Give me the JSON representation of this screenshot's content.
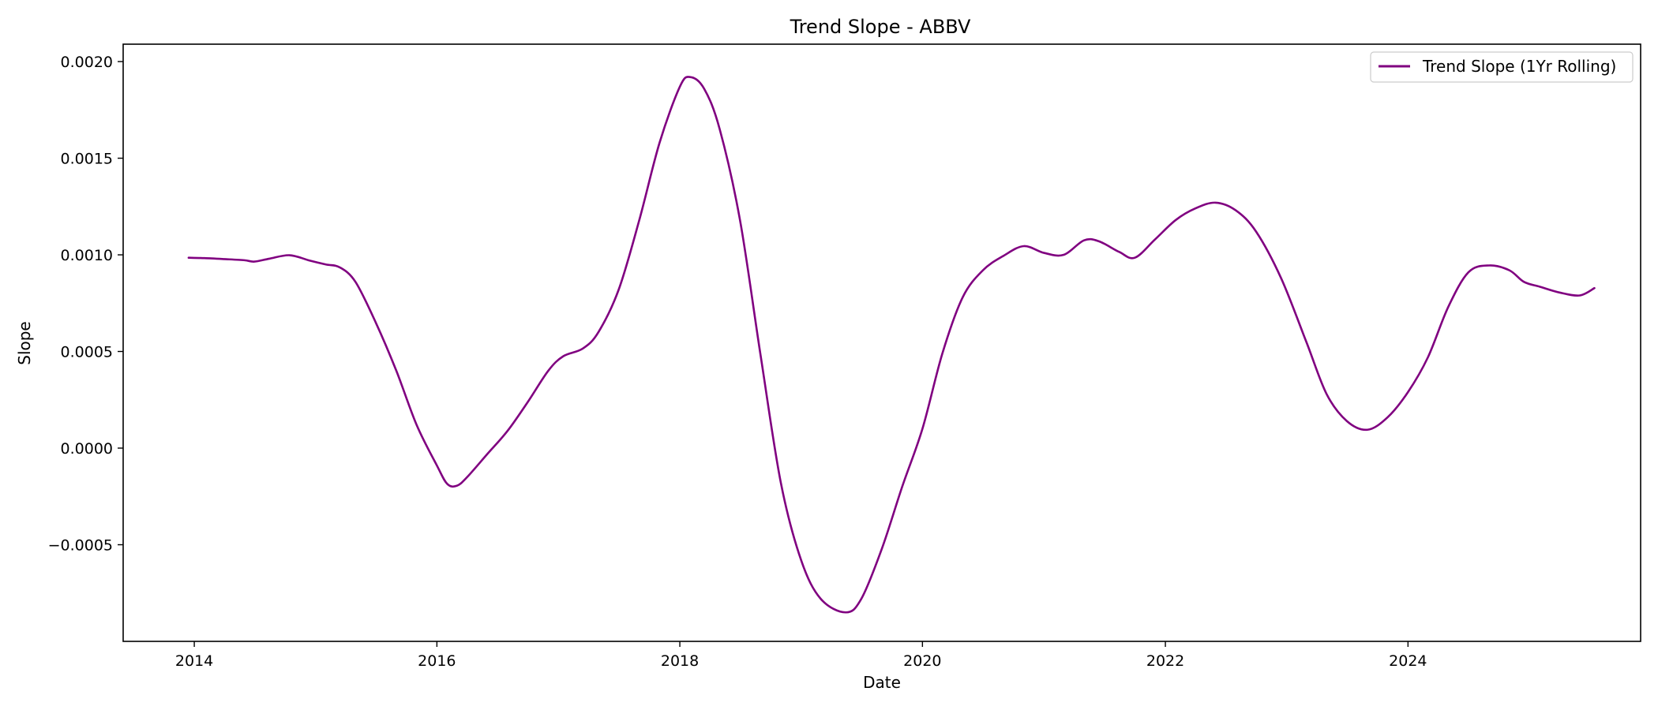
{
  "chart_data": {
    "type": "line",
    "title": "Trend Slope - ABBV",
    "xlabel": "Date",
    "ylabel": "Slope",
    "xlim": [
      "2013-06-01",
      "2025-12-01"
    ],
    "ylim": [
      -0.001,
      0.00209
    ],
    "grid": false,
    "legend_position": "top-right",
    "x_ticks": [
      {
        "date": "2014-01-01",
        "label": "2014"
      },
      {
        "date": "2016-01-01",
        "label": "2016"
      },
      {
        "date": "2018-01-01",
        "label": "2018"
      },
      {
        "date": "2020-01-01",
        "label": "2020"
      },
      {
        "date": "2022-01-01",
        "label": "2022"
      },
      {
        "date": "2024-01-01",
        "label": "2024"
      }
    ],
    "y_ticks": [
      {
        "value": -0.0005,
        "label": "−0.0005"
      },
      {
        "value": 0.0,
        "label": "0.0000"
      },
      {
        "value": 0.0005,
        "label": "0.0005"
      },
      {
        "value": 0.001,
        "label": "0.0010"
      },
      {
        "value": 0.0015,
        "label": "0.0015"
      },
      {
        "value": 0.002,
        "label": "0.0020"
      }
    ],
    "series": [
      {
        "name": "Trend Slope (1Yr Rolling)",
        "color": "#800080",
        "points": [
          [
            "2013-12-15",
            0.000985
          ],
          [
            "2014-02-01",
            0.000983
          ],
          [
            "2014-04-01",
            0.000978
          ],
          [
            "2014-06-01",
            0.000972
          ],
          [
            "2014-07-01",
            0.000965
          ],
          [
            "2014-08-15",
            0.00098
          ],
          [
            "2014-10-15",
            0.000998
          ],
          [
            "2014-12-15",
            0.00097
          ],
          [
            "2015-02-01",
            0.00095
          ],
          [
            "2015-03-15",
            0.000935
          ],
          [
            "2015-05-01",
            0.00086
          ],
          [
            "2015-07-01",
            0.00065
          ],
          [
            "2015-09-01",
            0.0004
          ],
          [
            "2015-11-01",
            0.00012
          ],
          [
            "2016-01-01",
            -9e-05
          ],
          [
            "2016-02-01",
            -0.000185
          ],
          [
            "2016-03-01",
            -0.000195
          ],
          [
            "2016-04-01",
            -0.00015
          ],
          [
            "2016-06-01",
            -3e-05
          ],
          [
            "2016-08-01",
            9e-05
          ],
          [
            "2016-10-01",
            0.00024
          ],
          [
            "2016-12-01",
            0.0004
          ],
          [
            "2017-01-15",
            0.000475
          ],
          [
            "2017-03-15",
            0.000515
          ],
          [
            "2017-05-01",
            0.0006
          ],
          [
            "2017-07-01",
            0.00082
          ],
          [
            "2017-09-01",
            0.00118
          ],
          [
            "2017-11-01",
            0.00158
          ],
          [
            "2018-01-01",
            0.00187
          ],
          [
            "2018-02-01",
            0.00192
          ],
          [
            "2018-03-15",
            0.00186
          ],
          [
            "2018-05-01",
            0.00165
          ],
          [
            "2018-07-01",
            0.00118
          ],
          [
            "2018-09-01",
            0.00048
          ],
          [
            "2018-11-01",
            -0.00018
          ],
          [
            "2019-01-01",
            -0.00058
          ],
          [
            "2019-03-01",
            -0.00078
          ],
          [
            "2019-05-15",
            -0.00085
          ],
          [
            "2019-07-01",
            -0.00078
          ],
          [
            "2019-09-01",
            -0.00052
          ],
          [
            "2019-11-01",
            -0.0002
          ],
          [
            "2020-01-01",
            0.0001
          ],
          [
            "2020-03-01",
            0.00049
          ],
          [
            "2020-05-01",
            0.00078
          ],
          [
            "2020-07-01",
            0.00092
          ],
          [
            "2020-09-01",
            0.000995
          ],
          [
            "2020-11-01",
            0.001045
          ],
          [
            "2021-01-01",
            0.00101
          ],
          [
            "2021-03-01",
            0.001
          ],
          [
            "2021-05-01",
            0.001075
          ],
          [
            "2021-06-15",
            0.00107
          ],
          [
            "2021-08-15",
            0.001015
          ],
          [
            "2021-10-01",
            0.000985
          ],
          [
            "2021-12-01",
            0.00108
          ],
          [
            "2022-02-01",
            0.00118
          ],
          [
            "2022-04-01",
            0.00124
          ],
          [
            "2022-06-01",
            0.00127
          ],
          [
            "2022-08-01",
            0.00123
          ],
          [
            "2022-10-01",
            0.00112
          ],
          [
            "2022-12-15",
            0.00088
          ],
          [
            "2023-03-01",
            0.00055
          ],
          [
            "2023-05-01",
            0.00028
          ],
          [
            "2023-07-01",
            0.00014
          ],
          [
            "2023-09-01",
            9.5e-05
          ],
          [
            "2023-11-01",
            0.00016
          ],
          [
            "2024-01-01",
            0.00029
          ],
          [
            "2024-03-01",
            0.00047
          ],
          [
            "2024-05-01",
            0.00073
          ],
          [
            "2024-07-01",
            0.00091
          ],
          [
            "2024-09-01",
            0.000945
          ],
          [
            "2024-11-01",
            0.00092
          ],
          [
            "2024-12-15",
            0.00086
          ],
          [
            "2025-02-01",
            0.000835
          ],
          [
            "2025-04-01",
            0.000805
          ],
          [
            "2025-06-01",
            0.00079
          ],
          [
            "2025-07-15",
            0.000828
          ]
        ]
      }
    ]
  }
}
